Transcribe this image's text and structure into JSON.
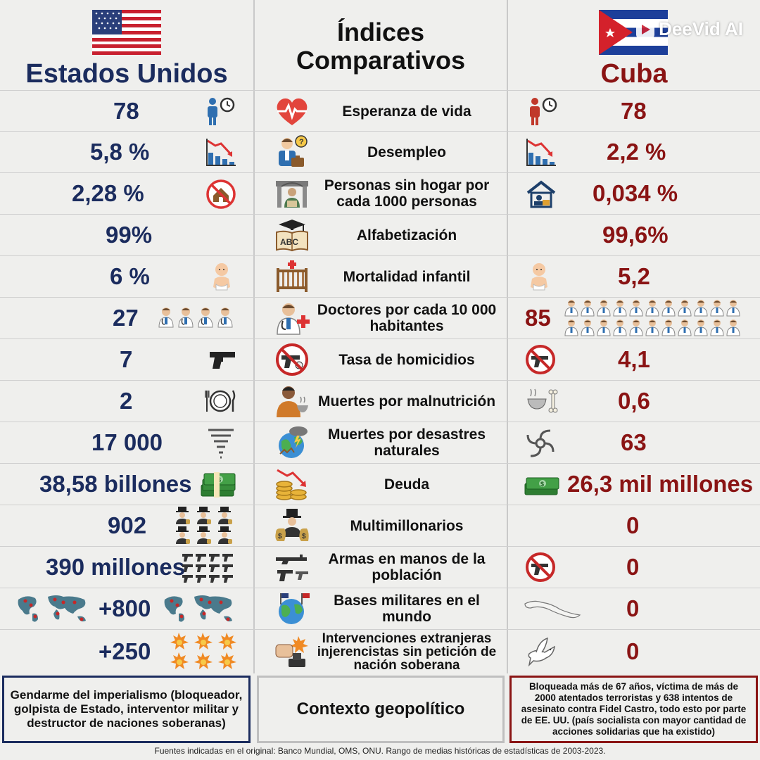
{
  "header": {
    "us_title": "Estados Unidos",
    "mid_title_line1": "Índices",
    "mid_title_line2": "Comparativos",
    "cuba_title": "Cuba",
    "watermark": "DeeVid AI"
  },
  "colors": {
    "us": "#1b2c5e",
    "cuba": "#8a1414"
  },
  "rows": [
    {
      "indicator": "Esperanza de vida",
      "us": "78",
      "cuba": "78",
      "icon": "heart-pulse-icon"
    },
    {
      "indicator": "Desempleo",
      "us": "5,8 %",
      "cuba": "2,2 %",
      "icon": "unemployed-person-icon"
    },
    {
      "indicator": "Personas sin hogar por cada 1000 personas",
      "us": "2,28 %",
      "cuba": "0,034 %",
      "icon": "homeless-person-icon"
    },
    {
      "indicator": "Alfabetización",
      "us": "99%",
      "cuba": "99,6%",
      "icon": "abc-book-icon"
    },
    {
      "indicator": "Mortalidad infantil",
      "us": "6 %",
      "cuba": "5,2",
      "icon": "crib-icon"
    },
    {
      "indicator": "Doctores por cada 10 000 habitantes",
      "us": "27",
      "cuba": "85",
      "icon": "doctor-icon"
    },
    {
      "indicator": "Tasa de homicidios",
      "us": "7",
      "cuba": "4,1",
      "icon": "no-gun-icon"
    },
    {
      "indicator": "Muertes por malnutrición",
      "us": "2",
      "cuba": "0,6",
      "icon": "malnutrition-icon"
    },
    {
      "indicator": "Muertes por desastres naturales",
      "us": "17 000",
      "cuba": "63",
      "icon": "natural-disaster-icon"
    },
    {
      "indicator": "Deuda",
      "us": "38,58 billones",
      "cuba": "26,3 mil millones",
      "icon": "debt-coins-icon"
    },
    {
      "indicator": "Multimillonarios",
      "us": "902",
      "cuba": "0",
      "icon": "billionaire-icon"
    },
    {
      "indicator": "Armas en manos de la población",
      "us": "390 millones",
      "cuba": "0",
      "icon": "guns-icon"
    },
    {
      "indicator": "Bases militares en el mundo",
      "us": "+800",
      "cuba": "0",
      "icon": "globe-flags-icon"
    },
    {
      "indicator": "Intervenciones extranjeras injerencistas sin petición de nación soberana",
      "us": "+250",
      "cuba": "0",
      "icon": "intervention-fist-icon"
    }
  ],
  "footer": {
    "us_box": "Gendarme del imperialismo (bloqueador, golpista de Estado, interventor militar y destructor de naciones soberanas)",
    "mid_box": "Contexto geopolítico",
    "cuba_box": "Bloqueada más de 67 años, víctima de más de 2000 atentados terroristas y 638 intentos de asesinato contra Fidel Castro, todo esto por parte de EE. UU. (país socialista con mayor cantidad de acciones solidarias que ha existido)",
    "source": "Fuentes indicadas en el original: Banco Mundial, OMS, ONU. Rango de medias históricas de estadísticas de 2003-2023."
  }
}
